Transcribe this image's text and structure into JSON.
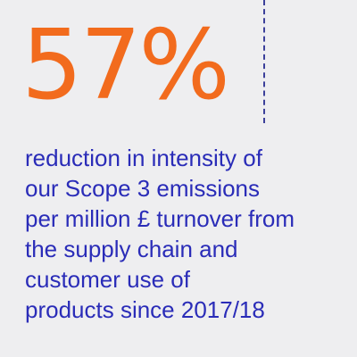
{
  "stat": {
    "value": "57%",
    "description_lines": [
      "reduction in intensity of",
      "our Scope 3 emissions",
      "per million £ turnover from",
      "the supply chain and",
      "customer use of",
      "products since 2017/18"
    ]
  },
  "colors": {
    "background": "#eeeef0",
    "accent_orange": "#f26b1d",
    "text_blue": "#2a2cb8",
    "divider": "#3b3f9a"
  }
}
